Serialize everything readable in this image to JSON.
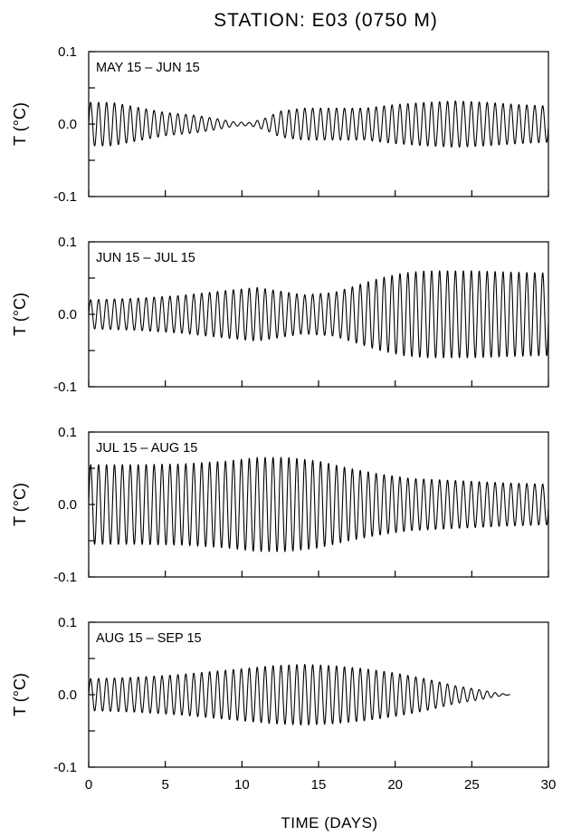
{
  "chart_data": {
    "type": "line",
    "title": "STATION: E03 (0750 M)",
    "xlabel": "TIME (DAYS)",
    "ylabel": "T (°C)",
    "xlim": [
      0,
      30
    ],
    "ylim": [
      -0.1,
      0.1
    ],
    "x_ticks": [
      0,
      5,
      10,
      15,
      20,
      25,
      30
    ],
    "x_tick_labels": [
      "0",
      "5",
      "10",
      "15",
      "20",
      "25",
      "30"
    ],
    "y_ticks": [
      0.1,
      0.0,
      -0.1
    ],
    "y_tick_labels": [
      "0.1",
      "0.0",
      "-0.1"
    ],
    "grid": false,
    "legend": "none",
    "oscillation_period_days": 0.5175,
    "panels": [
      {
        "label": "MAY 15 – JUN 15",
        "x_end": 30,
        "amplitude_envelope": {
          "x": [
            0,
            1.5,
            3,
            5,
            7,
            8.5,
            9.5,
            10.5,
            11.5,
            12.5,
            14,
            16,
            18,
            20,
            22,
            24,
            26,
            28,
            30
          ],
          "y": [
            0.03,
            0.03,
            0.024,
            0.016,
            0.012,
            0.007,
            0.003,
            0.002,
            0.008,
            0.018,
            0.022,
            0.022,
            0.022,
            0.027,
            0.03,
            0.032,
            0.03,
            0.027,
            0.025
          ]
        }
      },
      {
        "label": "JUN 15 – JUL 15",
        "x_end": 30,
        "amplitude_envelope": {
          "x": [
            0,
            3,
            6,
            9,
            11,
            12.5,
            14,
            16,
            17.5,
            19,
            20.5,
            22,
            25,
            28,
            30
          ],
          "y": [
            0.02,
            0.022,
            0.026,
            0.033,
            0.037,
            0.032,
            0.027,
            0.03,
            0.04,
            0.05,
            0.057,
            0.06,
            0.06,
            0.058,
            0.057
          ]
        }
      },
      {
        "label": "JUL 15 – AUG 15",
        "x_end": 30,
        "amplitude_envelope": {
          "x": [
            0,
            3,
            6,
            9,
            11,
            13,
            15,
            17,
            19,
            21,
            24,
            27,
            30
          ],
          "y": [
            0.055,
            0.055,
            0.056,
            0.06,
            0.065,
            0.065,
            0.06,
            0.05,
            0.042,
            0.036,
            0.033,
            0.03,
            0.028
          ]
        }
      },
      {
        "label": "AUG 15 – SEP 15",
        "x_end": 27.5,
        "amplitude_envelope": {
          "x": [
            0,
            3,
            6,
            9,
            12,
            14,
            16,
            18,
            20,
            22,
            24,
            25.5,
            26.5,
            27.5
          ],
          "y": [
            0.022,
            0.024,
            0.028,
            0.034,
            0.04,
            0.042,
            0.04,
            0.036,
            0.03,
            0.022,
            0.012,
            0.007,
            0.003,
            0.0
          ]
        }
      }
    ]
  }
}
